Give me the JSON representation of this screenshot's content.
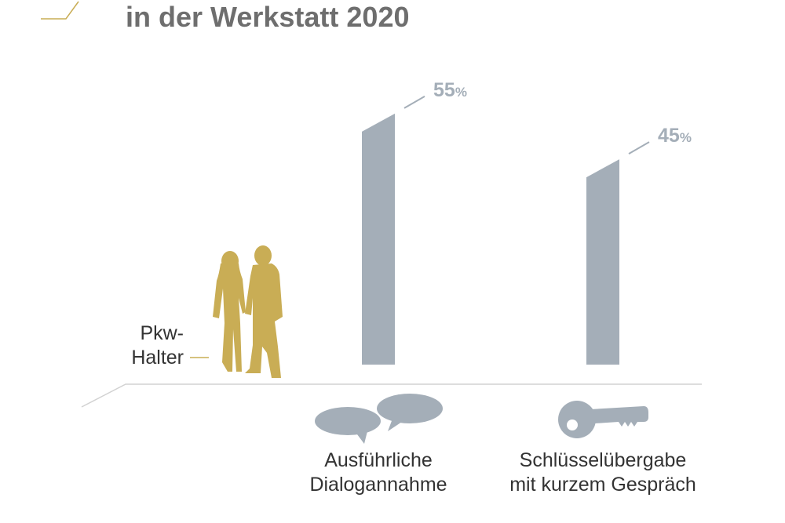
{
  "header": {
    "title": "in der Werkstatt 2020"
  },
  "colors": {
    "bar": "#a4aeb8",
    "value_label": "#a4aeb8",
    "accent_gold": "#c9ad55",
    "floor_line": "#d2d2d2",
    "title": "#6e6e6e",
    "text": "#333333"
  },
  "legend": {
    "owners_line1": "Pkw-",
    "owners_line2": "Halter",
    "owners_icon": "couple-silhouette-icon"
  },
  "categories": [
    {
      "line1": "Ausführliche",
      "line2": "Dialogannahme",
      "icon": "speech-bubbles-icon"
    },
    {
      "line1": "Schlüsselübergabe",
      "line2": "mit kurzem Gespräch",
      "icon": "key-icon"
    }
  ],
  "chart_data": {
    "type": "bar",
    "title": "in der Werkstatt 2020",
    "categories": [
      "Ausführliche Dialogannahme",
      "Schlüsselübergabe mit kurzem Gespräch"
    ],
    "series": [
      {
        "name": "Pkw-Halter",
        "values": [
          55,
          45
        ]
      }
    ],
    "value_labels": [
      {
        "number": "55",
        "unit": "%"
      },
      {
        "number": "45",
        "unit": "%"
      }
    ],
    "ylim": [
      0,
      100
    ],
    "grid": false,
    "xlabel": "",
    "ylabel": ""
  }
}
